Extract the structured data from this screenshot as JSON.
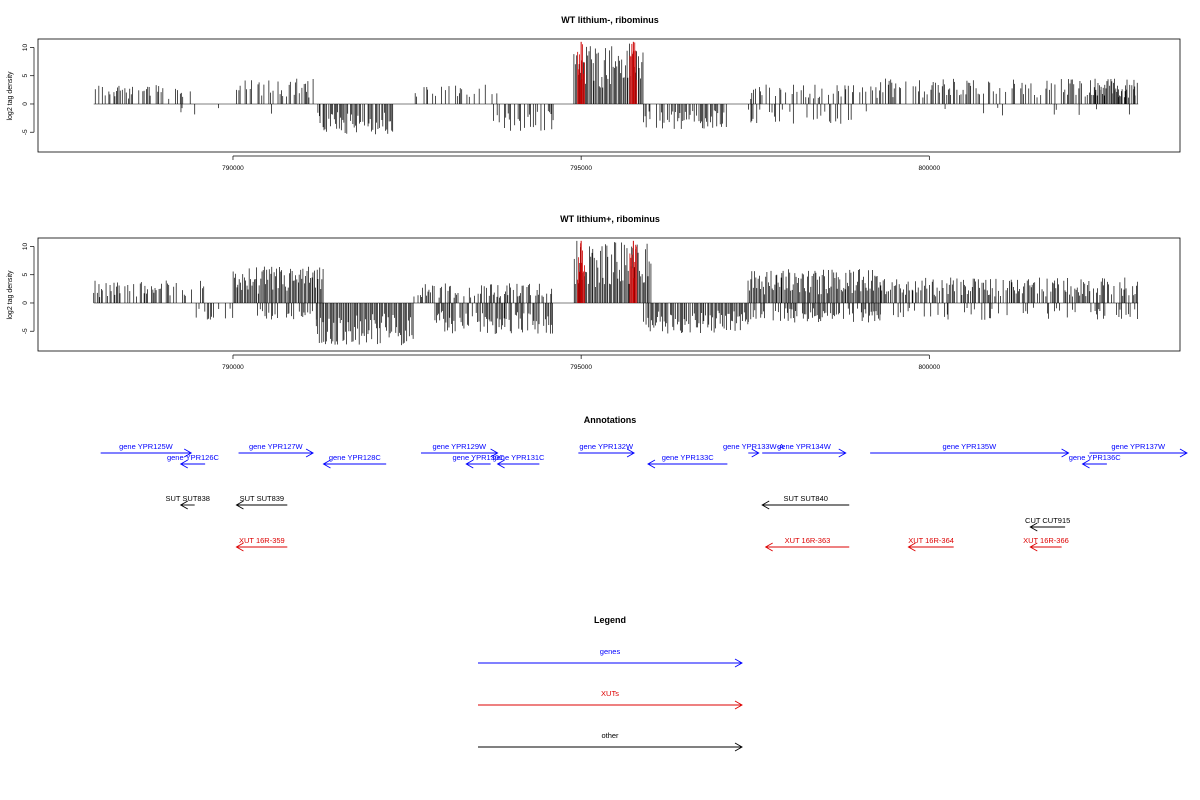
{
  "chart_data": [
    {
      "type": "bar",
      "title": "WT lithium-, ribominus",
      "xlabel": "",
      "ylabel": "log2 tag density",
      "xlim": [
        787200,
        803600
      ],
      "ylim": [
        -8.5,
        11.5
      ],
      "xticks": [
        790000,
        795000,
        800000
      ],
      "xtick_labels": [
        "790000",
        "795000",
        "800000"
      ],
      "yticks": [
        -5,
        0,
        5,
        10
      ],
      "ytick_labels": [
        "-5",
        "0",
        "5",
        "10"
      ],
      "grid": false,
      "highlight_color": "#cc0000",
      "bar_color": "#000000",
      "segments": [
        {
          "from": 788000,
          "to": 789400,
          "sign": 1,
          "max": 3.5,
          "density": 0.5
        },
        {
          "from": 789200,
          "to": 789800,
          "sign": -1,
          "max": 2.0,
          "density": 0.1
        },
        {
          "from": 790050,
          "to": 791200,
          "sign": 1,
          "max": 4.5,
          "density": 0.6
        },
        {
          "from": 790500,
          "to": 790600,
          "sign": -1,
          "max": 2.0,
          "density": 0.3
        },
        {
          "from": 791200,
          "to": 792300,
          "sign": -1,
          "max": 5.5,
          "density": 0.85
        },
        {
          "from": 792600,
          "to": 793800,
          "sign": 1,
          "max": 3.5,
          "density": 0.4
        },
        {
          "from": 793700,
          "to": 794600,
          "sign": -1,
          "max": 5.0,
          "density": 0.55
        },
        {
          "from": 794900,
          "to": 795900,
          "sign": 1,
          "max": 11.0,
          "density": 1.0
        },
        {
          "from": 795900,
          "to": 797100,
          "sign": -1,
          "max": 4.5,
          "density": 0.7
        },
        {
          "from": 797400,
          "to": 799300,
          "sign": 1,
          "max": 3.5,
          "density": 0.4
        },
        {
          "from": 797400,
          "to": 799300,
          "sign": -1,
          "max": 3.5,
          "density": 0.25
        },
        {
          "from": 799300,
          "to": 803000,
          "sign": 1,
          "max": 4.5,
          "density": 0.45
        },
        {
          "from": 799900,
          "to": 803000,
          "sign": -1,
          "max": 2.5,
          "density": 0.08
        },
        {
          "from": 802300,
          "to": 803000,
          "sign": 1,
          "max": 4.5,
          "density": 0.9
        }
      ],
      "highlights": [
        {
          "from": 794950,
          "to": 795050,
          "max": 11.0
        },
        {
          "from": 795700,
          "to": 795800,
          "max": 11.0
        }
      ]
    },
    {
      "type": "bar",
      "title": "WT lithium+, ribominus",
      "xlabel": "",
      "ylabel": "log2 tag density",
      "xlim": [
        787200,
        803600
      ],
      "ylim": [
        -8.5,
        11.5
      ],
      "xticks": [
        790000,
        795000,
        800000
      ],
      "xtick_labels": [
        "790000",
        "795000",
        "800000"
      ],
      "yticks": [
        -5,
        0,
        5,
        10
      ],
      "ytick_labels": [
        "-5",
        "0",
        "5",
        "10"
      ],
      "grid": false,
      "highlight_color": "#cc0000",
      "bar_color": "#000000",
      "segments": [
        {
          "from": 788000,
          "to": 789600,
          "sign": 1,
          "max": 4.0,
          "density": 0.6
        },
        {
          "from": 789400,
          "to": 790000,
          "sign": -1,
          "max": 3.0,
          "density": 0.3
        },
        {
          "from": 790000,
          "to": 791300,
          "sign": 1,
          "max": 6.5,
          "density": 1.0
        },
        {
          "from": 790300,
          "to": 791200,
          "sign": -1,
          "max": 3.0,
          "density": 0.5
        },
        {
          "from": 791200,
          "to": 792600,
          "sign": -1,
          "max": 7.5,
          "density": 1.0
        },
        {
          "from": 792600,
          "to": 794600,
          "sign": 1,
          "max": 3.5,
          "density": 0.55
        },
        {
          "from": 792900,
          "to": 794600,
          "sign": -1,
          "max": 5.5,
          "density": 0.75
        },
        {
          "from": 794900,
          "to": 796000,
          "sign": 1,
          "max": 11.0,
          "density": 1.0
        },
        {
          "from": 795900,
          "to": 797400,
          "sign": -1,
          "max": 5.5,
          "density": 0.9
        },
        {
          "from": 797400,
          "to": 799300,
          "sign": 1,
          "max": 6.0,
          "density": 1.0
        },
        {
          "from": 797400,
          "to": 799300,
          "sign": -1,
          "max": 3.5,
          "density": 0.7
        },
        {
          "from": 799300,
          "to": 803000,
          "sign": 1,
          "max": 4.5,
          "density": 0.75
        },
        {
          "from": 799300,
          "to": 803000,
          "sign": -1,
          "max": 3.0,
          "density": 0.25
        }
      ],
      "highlights": [
        {
          "from": 794950,
          "to": 795050,
          "max": 11.0
        },
        {
          "from": 795700,
          "to": 795800,
          "max": 11.0
        }
      ]
    }
  ],
  "annotations": {
    "title": "Annotations",
    "colors": {
      "genes": "#0000ff",
      "XUTs": "#dd0000",
      "other": "#000000"
    },
    "items": [
      {
        "label": "gene YPR125W",
        "start": 788100,
        "end": 789400,
        "strand": "+",
        "row": 0,
        "kind": "genes"
      },
      {
        "label": "gene YPR126C",
        "start": 789250,
        "end": 789600,
        "strand": "-",
        "row": 1,
        "kind": "genes"
      },
      {
        "label": "gene YPR127W",
        "start": 790080,
        "end": 791150,
        "strand": "+",
        "row": 0,
        "kind": "genes"
      },
      {
        "label": "gene YPR128C",
        "start": 791300,
        "end": 792200,
        "strand": "-",
        "row": 1,
        "kind": "genes"
      },
      {
        "label": "gene YPR129W",
        "start": 792700,
        "end": 793800,
        "strand": "+",
        "row": 0,
        "kind": "genes"
      },
      {
        "label": "gene YPR130C",
        "start": 793350,
        "end": 793700,
        "strand": "-",
        "row": 1,
        "kind": "genes"
      },
      {
        "label": "gene YPR131C",
        "start": 793800,
        "end": 794400,
        "strand": "-",
        "row": 1,
        "kind": "genes"
      },
      {
        "label": "gene YPR132W",
        "start": 794960,
        "end": 795760,
        "strand": "+",
        "row": 0,
        "kind": "genes"
      },
      {
        "label": "gene YPR133C",
        "start": 795960,
        "end": 797100,
        "strand": "-",
        "row": 1,
        "kind": "genes"
      },
      {
        "label": "gene YPR133W-A",
        "start": 797400,
        "end": 797550,
        "strand": "+",
        "row": 0,
        "kind": "genes"
      },
      {
        "label": "gene YPR134W",
        "start": 797600,
        "end": 798800,
        "strand": "+",
        "row": 0,
        "kind": "genes"
      },
      {
        "label": "gene YPR135W",
        "start": 799150,
        "end": 802000,
        "strand": "+",
        "row": 0,
        "kind": "genes"
      },
      {
        "label": "gene YPR136C",
        "start": 802200,
        "end": 802550,
        "strand": "-",
        "row": 1,
        "kind": "genes"
      },
      {
        "label": "gene YPR137W",
        "start": 802300,
        "end": 803700,
        "strand": "+",
        "row": 0,
        "kind": "genes"
      },
      {
        "label": "SUT SUT838",
        "start": 789250,
        "end": 789450,
        "strand": "-",
        "row": 2,
        "kind": "other"
      },
      {
        "label": "SUT SUT839",
        "start": 790050,
        "end": 790780,
        "strand": "-",
        "row": 2,
        "kind": "other"
      },
      {
        "label": "SUT SUT840",
        "start": 797600,
        "end": 798850,
        "strand": "-",
        "row": 2,
        "kind": "other"
      },
      {
        "label": "CUT CUT915",
        "start": 801450,
        "end": 801950,
        "strand": "-",
        "row": 3,
        "kind": "other"
      },
      {
        "label": "XUT 16R-359",
        "start": 790050,
        "end": 790780,
        "strand": "-",
        "row": 4,
        "kind": "XUTs"
      },
      {
        "label": "XUT 16R-363",
        "start": 797650,
        "end": 798850,
        "strand": "-",
        "row": 4,
        "kind": "XUTs"
      },
      {
        "label": "XUT 16R-364",
        "start": 799700,
        "end": 800350,
        "strand": "-",
        "row": 4,
        "kind": "XUTs"
      },
      {
        "label": "XUT 16R-366",
        "start": 801450,
        "end": 801900,
        "strand": "-",
        "row": 4,
        "kind": "XUTs"
      }
    ]
  },
  "legend": {
    "title": "Legend",
    "entries": [
      {
        "label": "genes",
        "color": "#0000ff"
      },
      {
        "label": "XUTs",
        "color": "#dd0000"
      },
      {
        "label": "other",
        "color": "#000000"
      }
    ]
  }
}
